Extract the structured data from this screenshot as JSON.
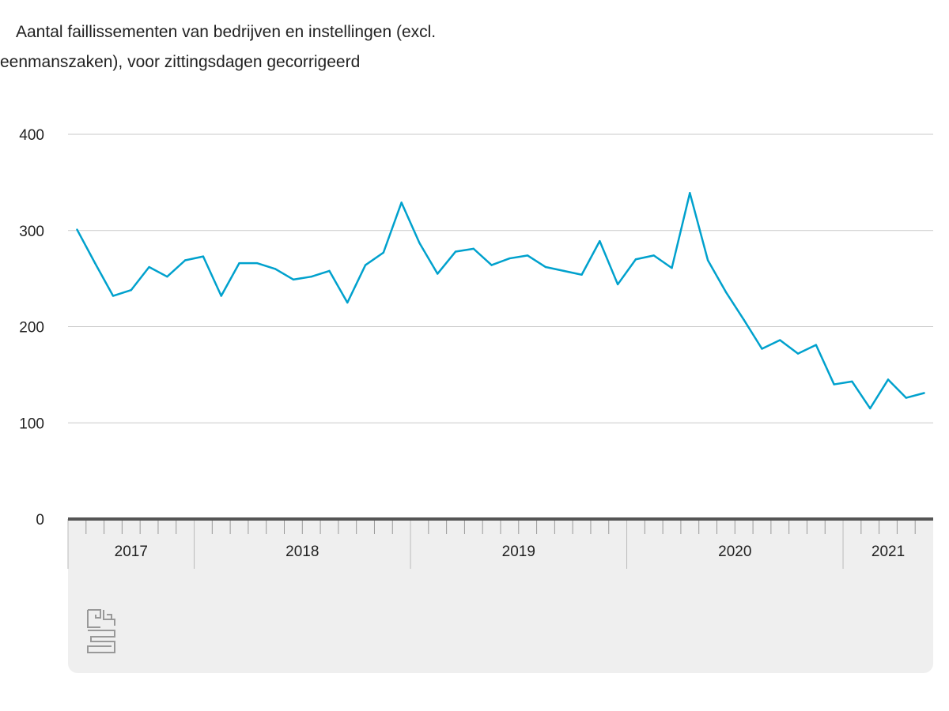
{
  "chart_data": {
    "type": "line",
    "title_line1": "Aantal faillissementen van bedrijven en instellingen (excl.",
    "title_line2": "eenmanszaken), voor zittingsdagen gecorrigeerd",
    "xlabel": "",
    "ylabel": "",
    "ylim": [
      0,
      400
    ],
    "yticks": [
      "0",
      "100",
      "200",
      "300",
      "400"
    ],
    "grid": true,
    "start": "2017-06",
    "years": [
      {
        "label": "2017",
        "months": 7
      },
      {
        "label": "2018",
        "months": 12
      },
      {
        "label": "2019",
        "months": 12
      },
      {
        "label": "2020",
        "months": 12
      },
      {
        "label": "2021",
        "months": 5
      }
    ],
    "series": [
      {
        "name": "Faillissementen",
        "color": "#00a1cd",
        "values": [
          301,
          266,
          232,
          238,
          262,
          252,
          269,
          273,
          232,
          266,
          266,
          260,
          249,
          252,
          258,
          225,
          264,
          277,
          329,
          287,
          255,
          278,
          281,
          264,
          271,
          274,
          262,
          258,
          254,
          289,
          244,
          270,
          274,
          261,
          339,
          269,
          236,
          207,
          177,
          186,
          172,
          181,
          140,
          143,
          115,
          145,
          126,
          131
        ]
      }
    ]
  },
  "logo": "cbs"
}
